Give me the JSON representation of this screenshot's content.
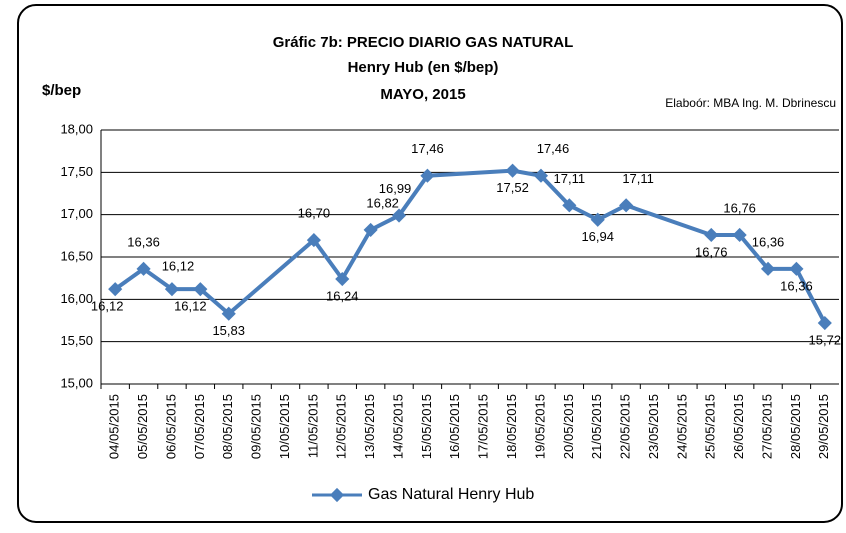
{
  "chart_data": {
    "type": "line",
    "title": "Gráfic 7b: PRECIO DIARIO GAS NATURAL",
    "subtitle": [
      "Henry Hub (en $/bep)",
      "MAYO, 2015"
    ],
    "y_axis_label": "$/bep",
    "annotation": "Elaboór: MBA Ing. M. Dbrinescu",
    "x": [
      "04/05/2015",
      "05/05/2015",
      "06/05/2015",
      "07/05/2015",
      "08/05/2015",
      "11/05/2015",
      "12/05/2015",
      "13/05/2015",
      "14/05/2015",
      "15/05/2015",
      "18/05/2015",
      "19/05/2015",
      "20/05/2015",
      "21/05/2015",
      "22/05/2015",
      "25/05/2015",
      "26/05/2015",
      "27/05/2015",
      "28/05/2015",
      "29/05/2015"
    ],
    "xticks": [
      "04/05/2015",
      "05/05/2015",
      "06/05/2015",
      "07/05/2015",
      "08/05/2015",
      "09/05/2015",
      "10/05/2015",
      "11/05/2015",
      "12/05/2015",
      "13/05/2015",
      "14/05/2015",
      "15/05/2015",
      "16/05/2015",
      "17/05/2015",
      "18/05/2015",
      "19/05/2015",
      "20/05/2015",
      "21/05/2015",
      "22/05/2015",
      "23/05/2015",
      "24/05/2015",
      "25/05/2015",
      "26/05/2015",
      "27/05/2015",
      "28/05/2015",
      "29/05/2015"
    ],
    "series": [
      {
        "name": "Gas Natural Henry Hub",
        "color": "#4a7ebb",
        "values": [
          16.12,
          16.36,
          16.12,
          16.12,
          15.83,
          16.7,
          16.24,
          16.82,
          16.99,
          17.46,
          17.52,
          17.46,
          17.11,
          16.94,
          17.11,
          16.76,
          16.76,
          16.36,
          16.36,
          15.72
        ],
        "value_labels": [
          "16,12",
          "16,36",
          "16,12",
          "16,12",
          "15,83",
          "16,70",
          "16,24",
          "16,82",
          "16,99",
          "17,46",
          "17,52",
          "17,46",
          "17,11",
          "16,94",
          "17,11",
          "16,76",
          "16,76",
          "16,36",
          "16,36",
          "15,72"
        ]
      }
    ],
    "ylim": [
      15,
      18
    ],
    "yticks": [
      {
        "value": 15,
        "label": "15,00"
      },
      {
        "value": 15.5,
        "label": "15,50"
      },
      {
        "value": 16,
        "label": "16,00"
      },
      {
        "value": 16.5,
        "label": "16,50"
      },
      {
        "value": 17,
        "label": "17,00"
      },
      {
        "value": 17.5,
        "label": "17,50"
      },
      {
        "value": 18,
        "label": "18,00"
      }
    ],
    "grid": true,
    "legend": "bottom"
  }
}
